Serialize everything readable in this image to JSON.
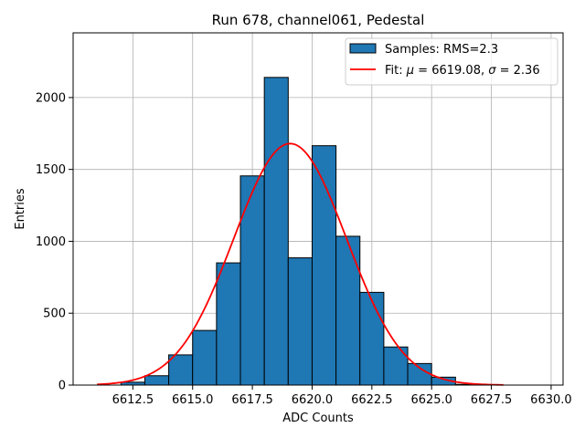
{
  "chart_data": {
    "type": "bar",
    "title": "Run 678, channel061, Pedestal",
    "xlabel": "ADC Counts",
    "ylabel": "Entries",
    "xlim": [
      6610.0,
      6630.5
    ],
    "ylim": [
      0,
      2450
    ],
    "xticks": [
      6612.5,
      6615.0,
      6617.5,
      6620.0,
      6622.5,
      6625.0,
      6627.5,
      6630.0
    ],
    "xtick_labels": [
      "6612.5",
      "6615.0",
      "6617.5",
      "6620.0",
      "6622.5",
      "6625.0",
      "6627.5",
      "6630.0"
    ],
    "yticks": [
      0,
      500,
      1000,
      1500,
      2000
    ],
    "ytick_labels": [
      "0",
      "500",
      "1000",
      "1500",
      "2000"
    ],
    "grid": true,
    "bar_color": "#1f77b4",
    "bar_edge_color": "#000000",
    "fit_color": "#ff0000",
    "bins": [
      {
        "left": 6612,
        "right": 6613,
        "value": 20
      },
      {
        "left": 6613,
        "right": 6614,
        "value": 65
      },
      {
        "left": 6614,
        "right": 6615,
        "value": 210
      },
      {
        "left": 6615,
        "right": 6616,
        "value": 380
      },
      {
        "left": 6616,
        "right": 6617,
        "value": 850
      },
      {
        "left": 6617,
        "right": 6618,
        "value": 1455
      },
      {
        "left": 6618,
        "right": 6619,
        "value": 2140
      },
      {
        "left": 6619,
        "right": 6620,
        "value": 885
      },
      {
        "left": 6620,
        "right": 6621,
        "value": 1665
      },
      {
        "left": 6621,
        "right": 6622,
        "value": 1035
      },
      {
        "left": 6622,
        "right": 6623,
        "value": 645
      },
      {
        "left": 6623,
        "right": 6624,
        "value": 265
      },
      {
        "left": 6624,
        "right": 6625,
        "value": 150
      },
      {
        "left": 6625,
        "right": 6626,
        "value": 55
      },
      {
        "left": 6626,
        "right": 6627,
        "value": 5
      }
    ],
    "fit": {
      "mu": 6619.08,
      "sigma": 2.36,
      "amplitude": 1680,
      "x_range": [
        6611,
        6628
      ]
    },
    "legend": {
      "position": "top-right",
      "entries": [
        {
          "label": "Samples: RMS=2.3",
          "kind": "patch"
        },
        {
          "label_prefix": "Fit: ",
          "mu_symbol": "μ",
          "mu_text": " = 6619.08, ",
          "sigma_symbol": "σ",
          "sigma_text": " = 2.36",
          "kind": "line"
        }
      ]
    }
  }
}
